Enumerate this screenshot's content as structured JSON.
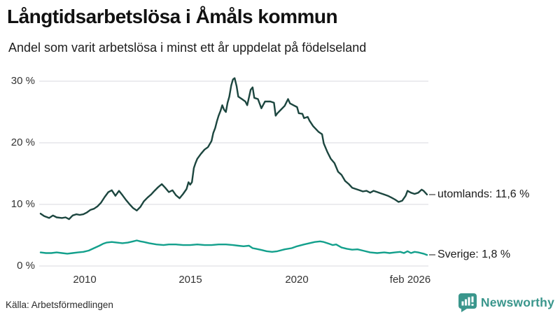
{
  "header": {
    "title": "Långtidsarbetslösa i Åmåls kommun",
    "subtitle": "Andel som varit arbetslösa i minst ett år uppdelat på födelseland"
  },
  "footer": {
    "source": "Källa: Arbetsförmedlingen",
    "brand": "Newsworthy"
  },
  "colors": {
    "utomlands_line": "#1c463f",
    "sverige_line": "#13a08c",
    "grid": "#e6e6ea",
    "connector": "#8a8a8a",
    "brand": "#3a968c"
  },
  "chart_data": {
    "type": "line",
    "title": "Långtidsarbetslösa i Åmåls kommun",
    "subtitle": "Andel som varit arbetslösa i minst ett år uppdelat på födelseland",
    "xlabel": "",
    "ylabel": "",
    "grid": true,
    "legend_position": "end-of-line",
    "x_axis": {
      "min": 2008.0,
      "max": 2026.08,
      "ticks": [
        {
          "x": 2010,
          "label": "2010"
        },
        {
          "x": 2015,
          "label": "2015"
        },
        {
          "x": 2020,
          "label": "2020"
        },
        {
          "x": 2026.08,
          "label": "feb 2026"
        }
      ]
    },
    "y_axis": {
      "min": 0,
      "max": 30,
      "unit": "%",
      "ticks": [
        {
          "y": 30,
          "label": "30 %"
        },
        {
          "y": 20,
          "label": "20 %"
        },
        {
          "y": 10,
          "label": "10 %"
        },
        {
          "y": 0,
          "label": "0 %"
        }
      ]
    },
    "series": [
      {
        "name": "utomlands",
        "end_label": "utomlands: 11,6 %",
        "end_value": 11.6,
        "color": "#1c463f",
        "points": [
          [
            2008.0,
            8.5
          ],
          [
            2008.17,
            8.1
          ],
          [
            2008.4,
            7.8
          ],
          [
            2008.58,
            8.2
          ],
          [
            2008.75,
            7.9
          ],
          [
            2009.0,
            7.8
          ],
          [
            2009.17,
            7.9
          ],
          [
            2009.33,
            7.6
          ],
          [
            2009.5,
            8.2
          ],
          [
            2009.67,
            8.4
          ],
          [
            2009.83,
            8.3
          ],
          [
            2010.0,
            8.4
          ],
          [
            2010.17,
            8.7
          ],
          [
            2010.33,
            9.1
          ],
          [
            2010.5,
            9.3
          ],
          [
            2010.67,
            9.7
          ],
          [
            2010.83,
            10.3
          ],
          [
            2011.0,
            11.2
          ],
          [
            2011.17,
            12.0
          ],
          [
            2011.33,
            12.3
          ],
          [
            2011.5,
            11.4
          ],
          [
            2011.67,
            12.2
          ],
          [
            2011.83,
            11.5
          ],
          [
            2012.0,
            10.7
          ],
          [
            2012.17,
            10.0
          ],
          [
            2012.33,
            9.4
          ],
          [
            2012.5,
            9.0
          ],
          [
            2012.67,
            9.6
          ],
          [
            2012.83,
            10.5
          ],
          [
            2013.0,
            11.1
          ],
          [
            2013.17,
            11.6
          ],
          [
            2013.33,
            12.2
          ],
          [
            2013.5,
            12.8
          ],
          [
            2013.67,
            13.3
          ],
          [
            2013.83,
            12.7
          ],
          [
            2014.0,
            12.0
          ],
          [
            2014.17,
            12.3
          ],
          [
            2014.33,
            11.5
          ],
          [
            2014.5,
            11.0
          ],
          [
            2014.67,
            11.7
          ],
          [
            2014.83,
            12.5
          ],
          [
            2014.92,
            13.6
          ],
          [
            2015.0,
            13.2
          ],
          [
            2015.08,
            13.6
          ],
          [
            2015.17,
            15.9
          ],
          [
            2015.25,
            16.7
          ],
          [
            2015.33,
            17.4
          ],
          [
            2015.5,
            18.2
          ],
          [
            2015.67,
            18.9
          ],
          [
            2015.83,
            19.3
          ],
          [
            2016.0,
            20.3
          ],
          [
            2016.08,
            21.6
          ],
          [
            2016.17,
            22.4
          ],
          [
            2016.25,
            23.5
          ],
          [
            2016.33,
            24.4
          ],
          [
            2016.42,
            25.2
          ],
          [
            2016.5,
            26.1
          ],
          [
            2016.58,
            25.4
          ],
          [
            2016.67,
            25.0
          ],
          [
            2016.75,
            26.5
          ],
          [
            2016.83,
            27.5
          ],
          [
            2016.92,
            29.3
          ],
          [
            2017.0,
            30.3
          ],
          [
            2017.08,
            30.5
          ],
          [
            2017.17,
            29.2
          ],
          [
            2017.25,
            27.5
          ],
          [
            2017.42,
            27.1
          ],
          [
            2017.58,
            26.7
          ],
          [
            2017.67,
            26.1
          ],
          [
            2017.83,
            28.6
          ],
          [
            2017.92,
            29.0
          ],
          [
            2018.0,
            27.3
          ],
          [
            2018.17,
            27.1
          ],
          [
            2018.33,
            25.6
          ],
          [
            2018.5,
            26.7
          ],
          [
            2018.75,
            26.7
          ],
          [
            2018.92,
            26.5
          ],
          [
            2019.0,
            24.4
          ],
          [
            2019.08,
            24.8
          ],
          [
            2019.25,
            25.4
          ],
          [
            2019.42,
            26.0
          ],
          [
            2019.58,
            27.1
          ],
          [
            2019.67,
            26.4
          ],
          [
            2019.83,
            26.1
          ],
          [
            2020.0,
            25.8
          ],
          [
            2020.08,
            24.8
          ],
          [
            2020.25,
            24.7
          ],
          [
            2020.33,
            24.0
          ],
          [
            2020.5,
            24.2
          ],
          [
            2020.58,
            23.6
          ],
          [
            2020.75,
            22.7
          ],
          [
            2021.0,
            21.8
          ],
          [
            2021.17,
            21.4
          ],
          [
            2021.25,
            19.9
          ],
          [
            2021.42,
            18.5
          ],
          [
            2021.58,
            17.4
          ],
          [
            2021.75,
            16.7
          ],
          [
            2021.92,
            15.3
          ],
          [
            2022.08,
            14.8
          ],
          [
            2022.25,
            13.8
          ],
          [
            2022.42,
            13.3
          ],
          [
            2022.58,
            12.7
          ],
          [
            2022.75,
            12.5
          ],
          [
            2022.92,
            12.3
          ],
          [
            2023.08,
            12.1
          ],
          [
            2023.25,
            12.2
          ],
          [
            2023.42,
            11.9
          ],
          [
            2023.58,
            12.2
          ],
          [
            2023.75,
            12.0
          ],
          [
            2023.92,
            11.8
          ],
          [
            2024.08,
            11.6
          ],
          [
            2024.25,
            11.4
          ],
          [
            2024.42,
            11.1
          ],
          [
            2024.58,
            10.8
          ],
          [
            2024.75,
            10.4
          ],
          [
            2024.92,
            10.6
          ],
          [
            2025.08,
            11.4
          ],
          [
            2025.17,
            12.2
          ],
          [
            2025.33,
            11.9
          ],
          [
            2025.5,
            11.7
          ],
          [
            2025.67,
            11.9
          ],
          [
            2025.83,
            12.4
          ],
          [
            2025.92,
            12.2
          ],
          [
            2026.08,
            11.6
          ]
        ]
      },
      {
        "name": "Sverige",
        "end_label": "Sverige:  1,8 %",
        "end_value": 1.8,
        "color": "#13a08c",
        "points": [
          [
            2008.0,
            2.2
          ],
          [
            2008.25,
            2.1
          ],
          [
            2008.5,
            2.1
          ],
          [
            2008.75,
            2.2
          ],
          [
            2009.0,
            2.1
          ],
          [
            2009.25,
            2.0
          ],
          [
            2009.5,
            2.1
          ],
          [
            2009.75,
            2.2
          ],
          [
            2010.0,
            2.3
          ],
          [
            2010.25,
            2.5
          ],
          [
            2010.5,
            2.9
          ],
          [
            2010.75,
            3.3
          ],
          [
            2010.92,
            3.6
          ],
          [
            2011.08,
            3.8
          ],
          [
            2011.33,
            3.9
          ],
          [
            2011.58,
            3.8
          ],
          [
            2011.83,
            3.7
          ],
          [
            2012.08,
            3.8
          ],
          [
            2012.33,
            4.0
          ],
          [
            2012.5,
            4.15
          ],
          [
            2012.67,
            4.0
          ],
          [
            2012.83,
            3.9
          ],
          [
            2013.08,
            3.7
          ],
          [
            2013.42,
            3.5
          ],
          [
            2013.75,
            3.4
          ],
          [
            2014.0,
            3.5
          ],
          [
            2014.33,
            3.5
          ],
          [
            2014.67,
            3.4
          ],
          [
            2015.0,
            3.4
          ],
          [
            2015.33,
            3.5
          ],
          [
            2015.67,
            3.4
          ],
          [
            2016.0,
            3.4
          ],
          [
            2016.33,
            3.5
          ],
          [
            2016.67,
            3.5
          ],
          [
            2017.0,
            3.4
          ],
          [
            2017.25,
            3.3
          ],
          [
            2017.5,
            3.2
          ],
          [
            2017.75,
            3.3
          ],
          [
            2017.92,
            2.9
          ],
          [
            2018.08,
            2.8
          ],
          [
            2018.33,
            2.6
          ],
          [
            2018.58,
            2.4
          ],
          [
            2018.83,
            2.3
          ],
          [
            2019.08,
            2.4
          ],
          [
            2019.42,
            2.7
          ],
          [
            2019.75,
            2.9
          ],
          [
            2020.0,
            3.2
          ],
          [
            2020.33,
            3.5
          ],
          [
            2020.58,
            3.7
          ],
          [
            2020.83,
            3.9
          ],
          [
            2021.08,
            4.0
          ],
          [
            2021.25,
            3.9
          ],
          [
            2021.5,
            3.6
          ],
          [
            2021.67,
            3.4
          ],
          [
            2021.83,
            3.5
          ],
          [
            2022.08,
            3.0
          ],
          [
            2022.33,
            2.8
          ],
          [
            2022.58,
            2.65
          ],
          [
            2022.83,
            2.7
          ],
          [
            2023.08,
            2.5
          ],
          [
            2023.42,
            2.2
          ],
          [
            2023.75,
            2.1
          ],
          [
            2024.08,
            2.2
          ],
          [
            2024.33,
            2.1
          ],
          [
            2024.58,
            2.2
          ],
          [
            2024.83,
            2.3
          ],
          [
            2025.0,
            2.1
          ],
          [
            2025.17,
            2.4
          ],
          [
            2025.33,
            2.1
          ],
          [
            2025.5,
            2.3
          ],
          [
            2025.67,
            2.2
          ],
          [
            2025.92,
            2.0
          ],
          [
            2026.08,
            1.8
          ]
        ]
      }
    ]
  }
}
